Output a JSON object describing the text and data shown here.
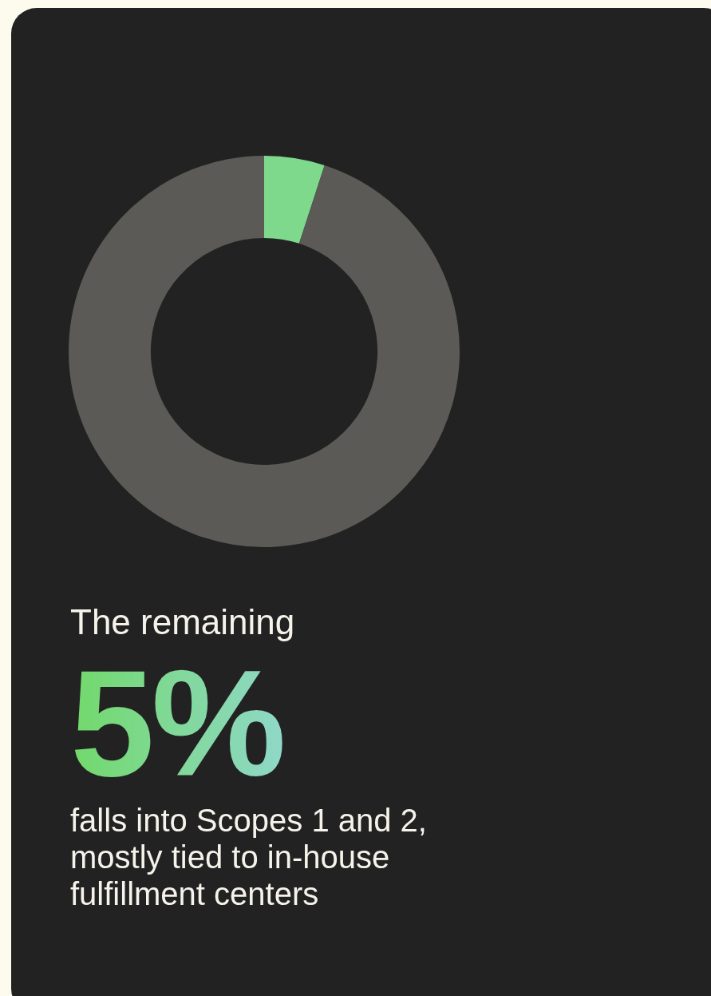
{
  "chart_data": {
    "type": "donut",
    "categories": [
      null,
      null
    ],
    "values": [
      5,
      95
    ],
    "colors": [
      "#7ed98c",
      "#5b5a56"
    ],
    "legend": false,
    "annotations": [
      "The remaining",
      "5%",
      "falls into Scopes 1 and 2, mostly tied to in-house fulfillment centers"
    ]
  }
}
